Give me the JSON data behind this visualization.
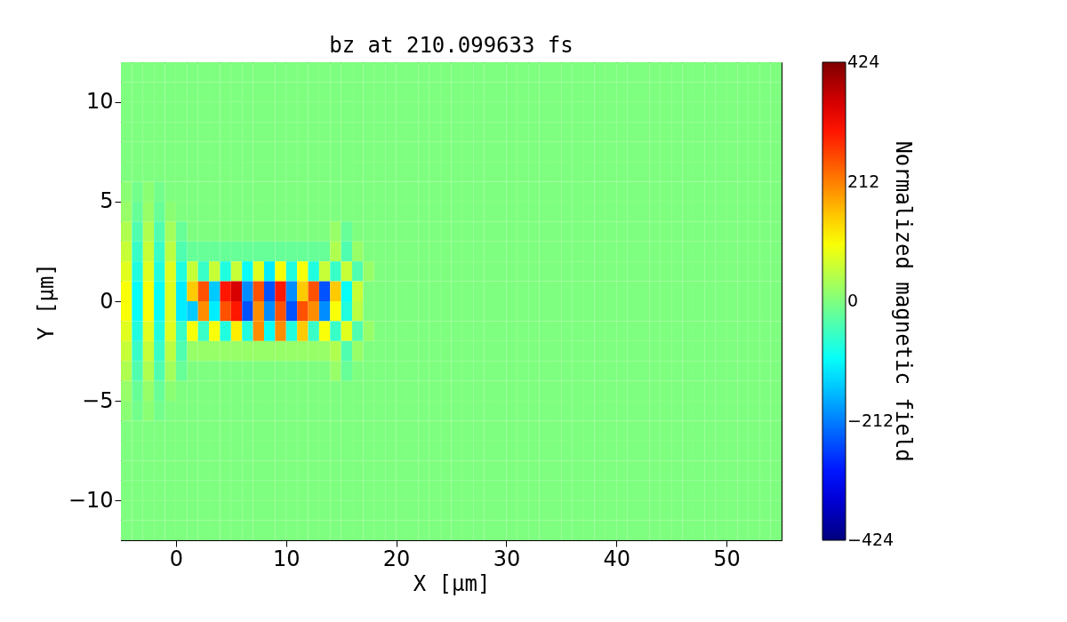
{
  "chart_data": {
    "type": "heatmap",
    "title": "bz at 210.099633 fs",
    "xlabel": "X [μm]",
    "ylabel": "Y [μm]",
    "clabel": "Normalized magnetic field",
    "x": [
      -4.5,
      -3.5,
      -2.5,
      -1.5,
      -0.5,
      0.5,
      1.5,
      2.5,
      3.5,
      4.5,
      5.5,
      6.5,
      7.5,
      8.5,
      9.5,
      10.5,
      11.5,
      12.5,
      13.5,
      14.5,
      15.5,
      16.5,
      17.5,
      18.5,
      19.5,
      20.5,
      21.5,
      22.5,
      23.5,
      24.5,
      25.5,
      26.5,
      27.5,
      28.5,
      29.5,
      30.5,
      31.5,
      32.5,
      33.5,
      34.5,
      35.5,
      36.5,
      37.5,
      38.5,
      39.5,
      40.5,
      41.5,
      42.5,
      43.5,
      44.5,
      45.5,
      46.5,
      47.5,
      48.5,
      49.5,
      50.5,
      51.5,
      52.5,
      53.5,
      54.5
    ],
    "y": [
      11.5,
      10.5,
      9.5,
      8.5,
      7.5,
      6.5,
      5.5,
      4.5,
      3.5,
      2.5,
      1.5,
      0.5,
      -0.5,
      -1.5,
      -2.5,
      -3.5,
      -4.5,
      -5.5,
      -6.5,
      -7.5,
      -8.5,
      -9.5,
      -10.5,
      -11.5
    ],
    "cells": [
      [
        0,
        0,
        0,
        0,
        0,
        0,
        0,
        0,
        0,
        0,
        0,
        0,
        0,
        0,
        0,
        0,
        0,
        0,
        0,
        0,
        0,
        0,
        0,
        0,
        0,
        0,
        0,
        0,
        0,
        0,
        0,
        0,
        0,
        0,
        0,
        0,
        0,
        0,
        0,
        0,
        0,
        0,
        0,
        0,
        0,
        0,
        0,
        0,
        0,
        0,
        0,
        0,
        0,
        0,
        0,
        0,
        0,
        0,
        0,
        0
      ],
      [
        0,
        0,
        0,
        0,
        0,
        0,
        0,
        0,
        0,
        0,
        0,
        0,
        0,
        0,
        0,
        0,
        0,
        0,
        0,
        0,
        0,
        0,
        0,
        0,
        0,
        0,
        0,
        0,
        0,
        0,
        0,
        0,
        0,
        0,
        0,
        0,
        0,
        0,
        0,
        0,
        0,
        0,
        0,
        0,
        0,
        0,
        0,
        0,
        0,
        0,
        0,
        0,
        0,
        0,
        0,
        0,
        0,
        0,
        0,
        0
      ],
      [
        0,
        0,
        0,
        0,
        0,
        0,
        0,
        0,
        0,
        0,
        0,
        0,
        0,
        0,
        0,
        0,
        0,
        0,
        0,
        0,
        0,
        0,
        0,
        0,
        0,
        0,
        0,
        0,
        0,
        0,
        0,
        0,
        0,
        0,
        0,
        0,
        0,
        0,
        0,
        0,
        0,
        0,
        0,
        0,
        0,
        0,
        0,
        0,
        0,
        0,
        0,
        0,
        0,
        0,
        0,
        0,
        0,
        0,
        0,
        0
      ],
      [
        0,
        0,
        0,
        0,
        0,
        0,
        0,
        0,
        0,
        0,
        0,
        0,
        0,
        0,
        0,
        0,
        0,
        0,
        0,
        0,
        0,
        0,
        0,
        0,
        0,
        0,
        0,
        0,
        0,
        0,
        0,
        0,
        0,
        0,
        0,
        0,
        0,
        0,
        0,
        0,
        0,
        0,
        0,
        0,
        0,
        0,
        0,
        0,
        0,
        0,
        0,
        0,
        0,
        0,
        0,
        0,
        0,
        0,
        0,
        0
      ],
      [
        0,
        0,
        0,
        0,
        0,
        0,
        0,
        0,
        0,
        0,
        0,
        0,
        0,
        0,
        0,
        0,
        0,
        0,
        0,
        0,
        0,
        0,
        0,
        0,
        0,
        0,
        0,
        0,
        0,
        0,
        0,
        0,
        0,
        0,
        0,
        0,
        0,
        0,
        0,
        0,
        0,
        0,
        0,
        0,
        0,
        0,
        0,
        0,
        0,
        0,
        0,
        0,
        0,
        0,
        0,
        0,
        0,
        0,
        0,
        0
      ],
      [
        0,
        0,
        0,
        0,
        0,
        0,
        0,
        0,
        0,
        0,
        0,
        0,
        0,
        0,
        0,
        0,
        0,
        0,
        0,
        0,
        0,
        0,
        0,
        0,
        0,
        0,
        0,
        0,
        0,
        0,
        0,
        0,
        0,
        0,
        0,
        0,
        0,
        0,
        0,
        0,
        0,
        0,
        0,
        0,
        0,
        0,
        0,
        0,
        0,
        0,
        0,
        0,
        0,
        0,
        0,
        0,
        0,
        0,
        0,
        0
      ],
      [
        10,
        -10,
        10,
        -10,
        0,
        0,
        0,
        0,
        0,
        0,
        0,
        0,
        0,
        0,
        0,
        0,
        0,
        0,
        0,
        0,
        0,
        0,
        0,
        0,
        0,
        0,
        0,
        0,
        0,
        0,
        0,
        0,
        0,
        0,
        0,
        0,
        0,
        0,
        0,
        0,
        0,
        0,
        0,
        0,
        0,
        0,
        0,
        0,
        0,
        0,
        0,
        0,
        0,
        0,
        0,
        0,
        0,
        0,
        0,
        0
      ],
      [
        20,
        -20,
        20,
        -20,
        10,
        0,
        0,
        0,
        0,
        0,
        0,
        0,
        0,
        0,
        0,
        0,
        0,
        0,
        0,
        0,
        0,
        0,
        0,
        0,
        0,
        0,
        0,
        0,
        0,
        0,
        0,
        0,
        0,
        0,
        0,
        0,
        0,
        0,
        0,
        0,
        0,
        0,
        0,
        0,
        0,
        0,
        0,
        0,
        0,
        0,
        0,
        0,
        0,
        0,
        0,
        0,
        0,
        0,
        0,
        0
      ],
      [
        40,
        -40,
        40,
        -40,
        30,
        -20,
        0,
        0,
        0,
        0,
        0,
        0,
        0,
        0,
        0,
        0,
        0,
        0,
        0,
        20,
        -20,
        0,
        0,
        0,
        0,
        0,
        0,
        0,
        0,
        0,
        0,
        0,
        0,
        0,
        0,
        0,
        0,
        0,
        0,
        0,
        0,
        0,
        0,
        0,
        0,
        0,
        0,
        0,
        0,
        0,
        0,
        0,
        0,
        0,
        0,
        0,
        0,
        0,
        0,
        0
      ],
      [
        60,
        -60,
        60,
        -60,
        50,
        -40,
        -20,
        -20,
        -20,
        -20,
        -20,
        -20,
        -20,
        -20,
        -20,
        -20,
        -20,
        -20,
        -20,
        40,
        -40,
        20,
        0,
        0,
        0,
        0,
        0,
        0,
        0,
        0,
        0,
        0,
        0,
        0,
        0,
        0,
        0,
        0,
        0,
        0,
        0,
        0,
        0,
        0,
        0,
        0,
        0,
        0,
        0,
        0,
        0,
        0,
        0,
        0,
        0,
        0,
        0,
        0,
        0,
        0
      ],
      [
        80,
        -80,
        80,
        -80,
        80,
        -80,
        60,
        -60,
        60,
        -80,
        60,
        -100,
        80,
        -120,
        100,
        -80,
        100,
        -80,
        60,
        -60,
        60,
        -40,
        20,
        0,
        0,
        0,
        0,
        0,
        0,
        0,
        0,
        0,
        0,
        0,
        0,
        0,
        0,
        0,
        0,
        0,
        0,
        0,
        0,
        0,
        0,
        0,
        0,
        0,
        0,
        0,
        0,
        0,
        0,
        0,
        0,
        0,
        0,
        0,
        0,
        0
      ],
      [
        100,
        -100,
        100,
        -100,
        80,
        -120,
        150,
        250,
        -150,
        300,
        350,
        -200,
        250,
        -250,
        300,
        -200,
        150,
        250,
        -250,
        150,
        -100,
        60,
        0,
        0,
        0,
        0,
        0,
        0,
        0,
        0,
        0,
        0,
        0,
        0,
        0,
        0,
        0,
        0,
        0,
        0,
        0,
        0,
        0,
        0,
        0,
        0,
        0,
        0,
        0,
        0,
        0,
        0,
        0,
        0,
        0,
        0,
        0,
        0,
        0,
        0
      ],
      [
        100,
        -100,
        100,
        -100,
        80,
        -120,
        -150,
        200,
        -120,
        250,
        300,
        -250,
        200,
        -200,
        250,
        -250,
        250,
        200,
        -200,
        100,
        -80,
        50,
        0,
        0,
        0,
        0,
        0,
        0,
        0,
        0,
        0,
        0,
        0,
        0,
        0,
        0,
        0,
        0,
        0,
        0,
        0,
        0,
        0,
        0,
        0,
        0,
        0,
        0,
        0,
        0,
        0,
        0,
        0,
        0,
        0,
        0,
        0,
        0,
        0,
        0
      ],
      [
        80,
        -80,
        80,
        -80,
        80,
        -60,
        100,
        -60,
        100,
        -80,
        120,
        -80,
        200,
        -100,
        200,
        -80,
        150,
        -60,
        100,
        -60,
        80,
        -40,
        20,
        0,
        0,
        0,
        0,
        0,
        0,
        0,
        0,
        0,
        0,
        0,
        0,
        0,
        0,
        0,
        0,
        0,
        0,
        0,
        0,
        0,
        0,
        0,
        0,
        0,
        0,
        0,
        0,
        0,
        0,
        0,
        0,
        0,
        0,
        0,
        0,
        0
      ],
      [
        60,
        -60,
        60,
        -60,
        50,
        -40,
        20,
        20,
        20,
        20,
        20,
        20,
        20,
        20,
        20,
        20,
        20,
        20,
        20,
        40,
        -40,
        20,
        0,
        0,
        0,
        0,
        0,
        0,
        0,
        0,
        0,
        0,
        0,
        0,
        0,
        0,
        0,
        0,
        0,
        0,
        0,
        0,
        0,
        0,
        0,
        0,
        0,
        0,
        0,
        0,
        0,
        0,
        0,
        0,
        0,
        0,
        0,
        0,
        0,
        0
      ],
      [
        40,
        -40,
        40,
        -40,
        30,
        -20,
        0,
        0,
        0,
        0,
        0,
        0,
        0,
        0,
        0,
        0,
        0,
        0,
        0,
        20,
        -20,
        0,
        0,
        0,
        0,
        0,
        0,
        0,
        0,
        0,
        0,
        0,
        0,
        0,
        0,
        0,
        0,
        0,
        0,
        0,
        0,
        0,
        0,
        0,
        0,
        0,
        0,
        0,
        0,
        0,
        0,
        0,
        0,
        0,
        0,
        0,
        0,
        0,
        0,
        0
      ],
      [
        20,
        -20,
        20,
        -20,
        10,
        0,
        0,
        0,
        0,
        0,
        0,
        0,
        0,
        0,
        0,
        0,
        0,
        0,
        0,
        0,
        0,
        0,
        0,
        0,
        0,
        0,
        0,
        0,
        0,
        0,
        0,
        0,
        0,
        0,
        0,
        0,
        0,
        0,
        0,
        0,
        0,
        0,
        0,
        0,
        0,
        0,
        0,
        0,
        0,
        0,
        0,
        0,
        0,
        0,
        0,
        0,
        0,
        0,
        0,
        0
      ],
      [
        10,
        -10,
        10,
        -10,
        0,
        0,
        0,
        0,
        0,
        0,
        0,
        0,
        0,
        0,
        0,
        0,
        0,
        0,
        0,
        0,
        0,
        0,
        0,
        0,
        0,
        0,
        0,
        0,
        0,
        0,
        0,
        0,
        0,
        0,
        0,
        0,
        0,
        0,
        0,
        0,
        0,
        0,
        0,
        0,
        0,
        0,
        0,
        0,
        0,
        0,
        0,
        0,
        0,
        0,
        0,
        0,
        0,
        0,
        0,
        0
      ],
      [
        0,
        0,
        0,
        0,
        0,
        0,
        0,
        0,
        0,
        0,
        0,
        0,
        0,
        0,
        0,
        0,
        0,
        0,
        0,
        0,
        0,
        0,
        0,
        0,
        0,
        0,
        0,
        0,
        0,
        0,
        0,
        0,
        0,
        0,
        0,
        0,
        0,
        0,
        0,
        0,
        0,
        0,
        0,
        0,
        0,
        0,
        0,
        0,
        0,
        0,
        0,
        0,
        0,
        0,
        0,
        0,
        0,
        0,
        0,
        0
      ],
      [
        0,
        0,
        0,
        0,
        0,
        0,
        0,
        0,
        0,
        0,
        0,
        0,
        0,
        0,
        0,
        0,
        0,
        0,
        0,
        0,
        0,
        0,
        0,
        0,
        0,
        0,
        0,
        0,
        0,
        0,
        0,
        0,
        0,
        0,
        0,
        0,
        0,
        0,
        0,
        0,
        0,
        0,
        0,
        0,
        0,
        0,
        0,
        0,
        0,
        0,
        0,
        0,
        0,
        0,
        0,
        0,
        0,
        0,
        0,
        0
      ],
      [
        0,
        0,
        0,
        0,
        0,
        0,
        0,
        0,
        0,
        0,
        0,
        0,
        0,
        0,
        0,
        0,
        0,
        0,
        0,
        0,
        0,
        0,
        0,
        0,
        0,
        0,
        0,
        0,
        0,
        0,
        0,
        0,
        0,
        0,
        0,
        0,
        0,
        0,
        0,
        0,
        0,
        0,
        0,
        0,
        0,
        0,
        0,
        0,
        0,
        0,
        0,
        0,
        0,
        0,
        0,
        0,
        0,
        0,
        0,
        0
      ],
      [
        0,
        0,
        0,
        0,
        0,
        0,
        0,
        0,
        0,
        0,
        0,
        0,
        0,
        0,
        0,
        0,
        0,
        0,
        0,
        0,
        0,
        0,
        0,
        0,
        0,
        0,
        0,
        0,
        0,
        0,
        0,
        0,
        0,
        0,
        0,
        0,
        0,
        0,
        0,
        0,
        0,
        0,
        0,
        0,
        0,
        0,
        0,
        0,
        0,
        0,
        0,
        0,
        0,
        0,
        0,
        0,
        0,
        0,
        0,
        0
      ],
      [
        0,
        0,
        0,
        0,
        0,
        0,
        0,
        0,
        0,
        0,
        0,
        0,
        0,
        0,
        0,
        0,
        0,
        0,
        0,
        0,
        0,
        0,
        0,
        0,
        0,
        0,
        0,
        0,
        0,
        0,
        0,
        0,
        0,
        0,
        0,
        0,
        0,
        0,
        0,
        0,
        0,
        0,
        0,
        0,
        0,
        0,
        0,
        0,
        0,
        0,
        0,
        0,
        0,
        0,
        0,
        0,
        0,
        0,
        0,
        0
      ],
      [
        0,
        0,
        0,
        0,
        0,
        0,
        0,
        0,
        0,
        0,
        0,
        0,
        0,
        0,
        0,
        0,
        0,
        0,
        0,
        0,
        0,
        0,
        0,
        0,
        0,
        0,
        0,
        0,
        0,
        0,
        0,
        0,
        0,
        0,
        0,
        0,
        0,
        0,
        0,
        0,
        0,
        0,
        0,
        0,
        0,
        0,
        0,
        0,
        0,
        0,
        0,
        0,
        0,
        0,
        0,
        0,
        0,
        0,
        0,
        0
      ]
    ],
    "xlim": [
      -5,
      55
    ],
    "ylim": [
      -12,
      12
    ],
    "xticks": [
      0,
      10,
      20,
      30,
      40,
      50
    ],
    "yticks": [
      -10,
      -5,
      0,
      5,
      10
    ],
    "clim": [
      -424,
      424
    ],
    "cticks": [
      -424,
      -212,
      0,
      212,
      424
    ],
    "grid": false
  }
}
